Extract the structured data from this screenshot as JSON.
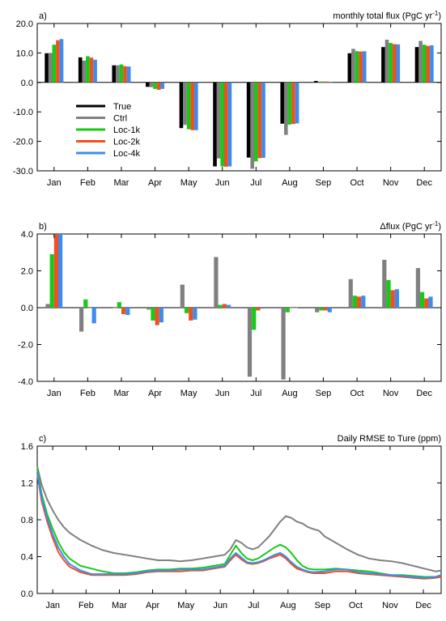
{
  "colors": {
    "True": "#000000",
    "Ctrl": "#808080",
    "Loc-1k": "#19c819",
    "Loc-2k": "#f0501e",
    "Loc-4k": "#3c8cf0"
  },
  "chart_data": [
    {
      "type": "bar",
      "panel_label": "a)",
      "title": "monthly total flux (PgC yr",
      "title_sup": "-1",
      "title_close": ")",
      "categories": [
        "Jan",
        "Feb",
        "Mar",
        "Apr",
        "May",
        "Jun",
        "Jul",
        "Aug",
        "Sep",
        "Oct",
        "Nov",
        "Dec"
      ],
      "ylim": [
        -30,
        20
      ],
      "yticks": [
        -30,
        -20,
        -10,
        0,
        10,
        20
      ],
      "ytick_labels": [
        "-30.0",
        "-20.0",
        "-10.0",
        "0.0",
        "10.0",
        "20.0"
      ],
      "legend_position": "lower-left inside",
      "series": [
        {
          "name": "True",
          "values": [
            9.9,
            8.5,
            5.8,
            -1.5,
            -15.5,
            -28.5,
            -25.5,
            -14.0,
            0.5,
            9.9,
            12.0,
            12.0
          ]
        },
        {
          "name": "Ctrl",
          "values": [
            10.0,
            7.4,
            5.8,
            -1.6,
            -14.4,
            -25.8,
            -29.3,
            -17.8,
            0.3,
            11.4,
            14.5,
            14.1
          ]
        },
        {
          "name": "Loc-1k",
          "values": [
            12.8,
            8.9,
            6.1,
            -2.2,
            -15.9,
            -28.5,
            -26.8,
            -14.3,
            0.3,
            10.6,
            13.4,
            12.8
          ]
        },
        {
          "name": "Loc-2k",
          "values": [
            14.3,
            8.4,
            5.5,
            -2.5,
            -16.2,
            -28.6,
            -25.7,
            -14.1,
            0.3,
            10.5,
            13.0,
            12.4
          ]
        },
        {
          "name": "Loc-4k",
          "values": [
            14.7,
            7.7,
            5.4,
            -2.2,
            -16.2,
            -28.5,
            -25.6,
            -13.9,
            0.2,
            10.6,
            12.9,
            12.6
          ]
        }
      ]
    },
    {
      "type": "bar",
      "panel_label": "b)",
      "title": "Δflux (PgC yr",
      "title_sup": "-1",
      "title_close": ")",
      "categories": [
        "Jan",
        "Feb",
        "Mar",
        "Apr",
        "May",
        "Jun",
        "Jul",
        "Aug",
        "Sep",
        "Oct",
        "Nov",
        "Dec"
      ],
      "ylim": [
        -4,
        4
      ],
      "yticks": [
        -4,
        -2,
        0,
        2,
        4
      ],
      "ytick_labels": [
        "-4.0",
        "-2.0",
        "0.0",
        "2.0",
        "4.0"
      ],
      "series": [
        {
          "name": "Ctrl",
          "values": [
            0.2,
            -1.3,
            0.0,
            -0.1,
            1.25,
            2.75,
            -3.75,
            -3.9,
            -0.25,
            1.55,
            2.6,
            2.15
          ]
        },
        {
          "name": "Loc-1k",
          "values": [
            2.9,
            0.45,
            0.3,
            -0.7,
            -0.3,
            0.15,
            -1.2,
            -0.25,
            -0.15,
            0.65,
            1.5,
            0.85
          ]
        },
        {
          "name": "Loc-2k",
          "values": [
            4.0,
            0.0,
            -0.35,
            -0.95,
            -0.7,
            0.2,
            -0.15,
            0.0,
            -0.15,
            0.6,
            0.95,
            0.5
          ]
        },
        {
          "name": "Loc-4k",
          "values": [
            4.0,
            -0.85,
            -0.4,
            -0.8,
            -0.65,
            0.15,
            -0.05,
            0.0,
            -0.25,
            0.65,
            1.0,
            0.6
          ]
        }
      ]
    },
    {
      "type": "line",
      "panel_label": "c)",
      "title": "Daily RMSE to Ture (ppm)",
      "x_label_days": [
        15,
        45,
        75,
        105,
        135,
        166,
        196,
        227,
        258,
        288,
        319,
        349
      ],
      "categories": [
        "Jan",
        "Feb",
        "Mar",
        "Apr",
        "May",
        "Jun",
        "Jul",
        "Aug",
        "Sep",
        "Oct",
        "Nov",
        "Dec"
      ],
      "xlim": [
        1,
        365
      ],
      "ylim": [
        0,
        1.6
      ],
      "yticks": [
        0,
        0.4,
        0.8,
        1.2,
        1.6
      ],
      "ytick_labels": [
        "0.0",
        "0.4",
        "0.8",
        "1.2",
        "1.6"
      ],
      "series": [
        {
          "name": "Ctrl",
          "x": [
            1,
            5,
            10,
            15,
            20,
            25,
            30,
            40,
            50,
            60,
            70,
            80,
            90,
            100,
            110,
            120,
            130,
            140,
            150,
            160,
            170,
            175,
            180,
            185,
            190,
            195,
            200,
            205,
            210,
            215,
            220,
            225,
            230,
            235,
            240,
            245,
            250,
            255,
            260,
            270,
            280,
            290,
            300,
            310,
            320,
            330,
            340,
            350,
            360,
            365
          ],
          "y": [
            1.38,
            1.18,
            1.02,
            0.9,
            0.8,
            0.72,
            0.66,
            0.58,
            0.52,
            0.47,
            0.44,
            0.42,
            0.4,
            0.38,
            0.36,
            0.36,
            0.35,
            0.36,
            0.38,
            0.4,
            0.42,
            0.48,
            0.58,
            0.55,
            0.5,
            0.48,
            0.5,
            0.56,
            0.62,
            0.7,
            0.78,
            0.84,
            0.82,
            0.78,
            0.76,
            0.72,
            0.7,
            0.68,
            0.62,
            0.55,
            0.48,
            0.42,
            0.38,
            0.36,
            0.35,
            0.33,
            0.3,
            0.27,
            0.24,
            0.25
          ]
        },
        {
          "name": "Loc-1k",
          "x": [
            1,
            5,
            10,
            15,
            20,
            25,
            30,
            40,
            50,
            60,
            70,
            80,
            90,
            100,
            110,
            120,
            130,
            140,
            150,
            160,
            170,
            175,
            180,
            185,
            190,
            195,
            200,
            205,
            210,
            215,
            220,
            225,
            230,
            235,
            240,
            245,
            250,
            260,
            270,
            280,
            290,
            300,
            310,
            320,
            330,
            340,
            350,
            360,
            365
          ],
          "y": [
            1.35,
            1.08,
            0.86,
            0.7,
            0.56,
            0.45,
            0.38,
            0.3,
            0.27,
            0.24,
            0.22,
            0.22,
            0.23,
            0.25,
            0.26,
            0.26,
            0.27,
            0.27,
            0.28,
            0.3,
            0.32,
            0.42,
            0.52,
            0.44,
            0.38,
            0.36,
            0.38,
            0.42,
            0.46,
            0.5,
            0.53,
            0.5,
            0.44,
            0.36,
            0.3,
            0.27,
            0.26,
            0.26,
            0.27,
            0.26,
            0.25,
            0.24,
            0.22,
            0.2,
            0.2,
            0.19,
            0.18,
            0.18,
            0.2
          ]
        },
        {
          "name": "Loc-2k",
          "x": [
            1,
            5,
            10,
            15,
            20,
            25,
            30,
            40,
            50,
            60,
            70,
            80,
            90,
            100,
            110,
            120,
            130,
            140,
            150,
            160,
            170,
            175,
            180,
            185,
            190,
            195,
            200,
            205,
            210,
            215,
            220,
            225,
            230,
            235,
            240,
            245,
            250,
            260,
            270,
            280,
            290,
            300,
            310,
            320,
            330,
            340,
            350,
            360,
            365
          ],
          "y": [
            1.3,
            1.0,
            0.78,
            0.6,
            0.45,
            0.36,
            0.29,
            0.23,
            0.2,
            0.2,
            0.2,
            0.2,
            0.21,
            0.23,
            0.24,
            0.24,
            0.24,
            0.25,
            0.25,
            0.27,
            0.29,
            0.36,
            0.42,
            0.37,
            0.33,
            0.32,
            0.33,
            0.35,
            0.38,
            0.4,
            0.42,
            0.38,
            0.32,
            0.27,
            0.25,
            0.23,
            0.22,
            0.22,
            0.24,
            0.24,
            0.22,
            0.21,
            0.2,
            0.19,
            0.18,
            0.17,
            0.16,
            0.17,
            0.18
          ]
        },
        {
          "name": "Loc-4k",
          "x": [
            1,
            5,
            10,
            15,
            20,
            25,
            30,
            40,
            50,
            60,
            70,
            80,
            90,
            100,
            110,
            120,
            130,
            140,
            150,
            160,
            170,
            175,
            180,
            185,
            190,
            195,
            200,
            205,
            210,
            215,
            220,
            225,
            230,
            235,
            240,
            245,
            250,
            260,
            270,
            280,
            290,
            300,
            310,
            320,
            330,
            340,
            350,
            360,
            365
          ],
          "y": [
            1.32,
            1.04,
            0.82,
            0.64,
            0.5,
            0.4,
            0.32,
            0.25,
            0.21,
            0.21,
            0.21,
            0.21,
            0.22,
            0.24,
            0.25,
            0.25,
            0.26,
            0.26,
            0.26,
            0.28,
            0.3,
            0.38,
            0.44,
            0.39,
            0.34,
            0.33,
            0.34,
            0.36,
            0.39,
            0.42,
            0.44,
            0.4,
            0.34,
            0.29,
            0.26,
            0.24,
            0.23,
            0.24,
            0.26,
            0.26,
            0.23,
            0.22,
            0.21,
            0.2,
            0.19,
            0.18,
            0.17,
            0.18,
            0.2
          ]
        },
        {
          "name": "True",
          "x": [],
          "y": []
        }
      ]
    }
  ]
}
